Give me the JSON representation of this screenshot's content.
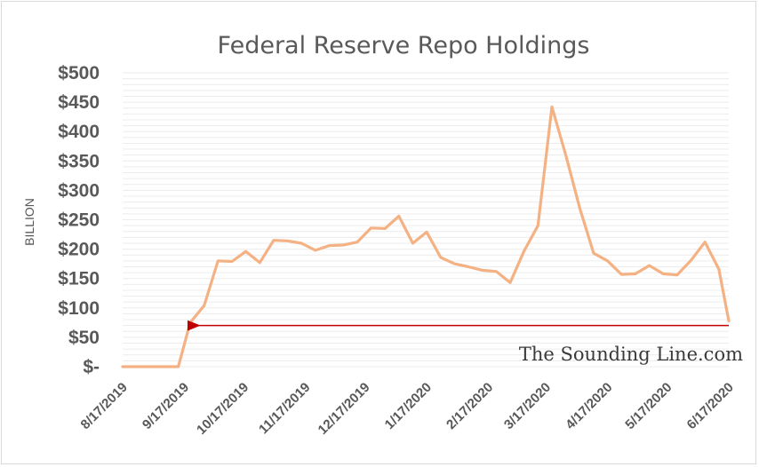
{
  "chart_data": {
    "type": "line",
    "title": "Federal Reserve Repo Holdings",
    "ylabel": "BILLION",
    "xlabel": "",
    "ylim": [
      0,
      500
    ],
    "y_ticks": [
      {
        "value": 0,
        "label": "$-"
      },
      {
        "value": 50,
        "label": "$50"
      },
      {
        "value": 100,
        "label": "$100"
      },
      {
        "value": 150,
        "label": "$150"
      },
      {
        "value": 200,
        "label": "$200"
      },
      {
        "value": 250,
        "label": "$250"
      },
      {
        "value": 300,
        "label": "$300"
      },
      {
        "value": 350,
        "label": "$350"
      },
      {
        "value": 400,
        "label": "$400"
      },
      {
        "value": 450,
        "label": "$450"
      },
      {
        "value": 500,
        "label": "$500"
      }
    ],
    "x_ticks": [
      {
        "date": "2019-08-17",
        "label": "8/17/2019"
      },
      {
        "date": "2019-09-17",
        "label": "9/17/2019"
      },
      {
        "date": "2019-10-17",
        "label": "10/17/2019"
      },
      {
        "date": "2019-11-17",
        "label": "11/17/2019"
      },
      {
        "date": "2019-12-17",
        "label": "12/17/2019"
      },
      {
        "date": "2020-01-17",
        "label": "1/17/2020"
      },
      {
        "date": "2020-02-17",
        "label": "2/17/2020"
      },
      {
        "date": "2020-03-17",
        "label": "3/17/2020"
      },
      {
        "date": "2020-04-17",
        "label": "4/17/2020"
      },
      {
        "date": "2020-05-17",
        "label": "5/17/2020"
      },
      {
        "date": "2020-06-17",
        "label": "6/17/2020"
      }
    ],
    "xlim": [
      "2019-08-17",
      "2020-06-17"
    ],
    "grid": true,
    "series": [
      {
        "color": "#f4b183",
        "points": [
          [
            "2019-08-17",
            0
          ],
          [
            "2019-08-24",
            0
          ],
          [
            "2019-08-31",
            0
          ],
          [
            "2019-09-07",
            0
          ],
          [
            "2019-09-14",
            0
          ],
          [
            "2019-09-20",
            75
          ],
          [
            "2019-09-27",
            104
          ],
          [
            "2019-10-04",
            180
          ],
          [
            "2019-10-11",
            179
          ],
          [
            "2019-10-18",
            196
          ],
          [
            "2019-10-25",
            177
          ],
          [
            "2019-11-01",
            215
          ],
          [
            "2019-11-08",
            214
          ],
          [
            "2019-11-15",
            210
          ],
          [
            "2019-11-22",
            198
          ],
          [
            "2019-11-29",
            206
          ],
          [
            "2019-12-06",
            207
          ],
          [
            "2019-12-13",
            212
          ],
          [
            "2019-12-20",
            236
          ],
          [
            "2019-12-27",
            235
          ],
          [
            "2020-01-03",
            256
          ],
          [
            "2020-01-10",
            210
          ],
          [
            "2020-01-17",
            229
          ],
          [
            "2020-01-24",
            186
          ],
          [
            "2020-01-31",
            175
          ],
          [
            "2020-02-07",
            170
          ],
          [
            "2020-02-14",
            164
          ],
          [
            "2020-02-21",
            162
          ],
          [
            "2020-02-28",
            143
          ],
          [
            "2020-03-06",
            197
          ],
          [
            "2020-03-13",
            240
          ],
          [
            "2020-03-20",
            442
          ],
          [
            "2020-03-27",
            360
          ],
          [
            "2020-04-03",
            270
          ],
          [
            "2020-04-10",
            193
          ],
          [
            "2020-04-17",
            180
          ],
          [
            "2020-04-24",
            157
          ],
          [
            "2020-05-01",
            158
          ],
          [
            "2020-05-08",
            172
          ],
          [
            "2020-05-15",
            158
          ],
          [
            "2020-05-22",
            156
          ],
          [
            "2020-05-29",
            181
          ],
          [
            "2020-06-05",
            212
          ],
          [
            "2020-06-12",
            166
          ],
          [
            "2020-06-17",
            78
          ]
        ]
      }
    ],
    "annotations": [
      {
        "type": "arrow",
        "color": "#c00000",
        "y": 70,
        "from": "2020-06-17",
        "to": "2019-09-21"
      }
    ],
    "watermark": "The Sounding Line.com"
  }
}
